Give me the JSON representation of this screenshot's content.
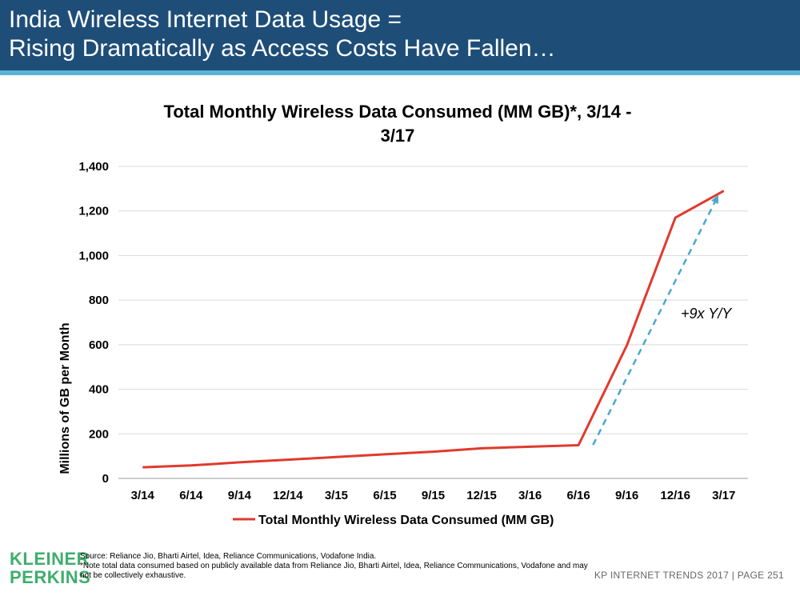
{
  "header": {
    "title_line1": "India Wireless Internet Data Usage =",
    "title_line2": "Rising Dramatically as Access Costs Have Fallen…",
    "colors": {
      "background": "#1e4e78",
      "accent_line": "#58b4d6"
    }
  },
  "chart_data": {
    "type": "line",
    "title_lines": [
      "Total Monthly Wireless Data Consumed (MM GB)*, 3/14 -",
      "3/17"
    ],
    "ylabel": "Millions of GB per Month",
    "xlabel": "",
    "categories": [
      "3/14",
      "6/14",
      "9/14",
      "12/14",
      "3/15",
      "6/15",
      "9/15",
      "12/15",
      "3/16",
      "6/16",
      "9/16",
      "12/16",
      "3/17"
    ],
    "series": [
      {
        "name": "Total Monthly Wireless Data Consumed (MM GB)",
        "color": "#e03a2e",
        "values": [
          50,
          58,
          72,
          84,
          96,
          108,
          120,
          135,
          142,
          149,
          598,
          1170,
          1290
        ]
      }
    ],
    "ylim": [
      0,
      1400
    ],
    "yticks": [
      0,
      200,
      400,
      600,
      800,
      1000,
      1200,
      1400
    ],
    "ytick_labels": [
      "0",
      "200",
      "400",
      "600",
      "800",
      "1,000",
      "1,200",
      "1,400"
    ],
    "grid": true,
    "legend_position": "bottom",
    "annotation": {
      "text": "+9x Y/Y",
      "color": "#4aa8cf",
      "arrow_from": {
        "x": 9.3,
        "y": 150
      },
      "arrow_to": {
        "x": 11.85,
        "y": 1255
      }
    }
  },
  "footer": {
    "logo_line1": "KLEINER",
    "logo_line2": "PERKINS",
    "source_line": "Source: Reliance Jio, Bharti Airtel, Idea, Reliance Communications, Vodafone India.",
    "note_line": "*Note total data consumed based on publicly available data from Reliance Jio, Bharti Airtel, Idea, Reliance Communications, Vodafone and may not be collectively exhaustive.",
    "page_info": "KP INTERNET TRENDS 2017   |   PAGE 251",
    "logo_color": "#3fae6c"
  }
}
